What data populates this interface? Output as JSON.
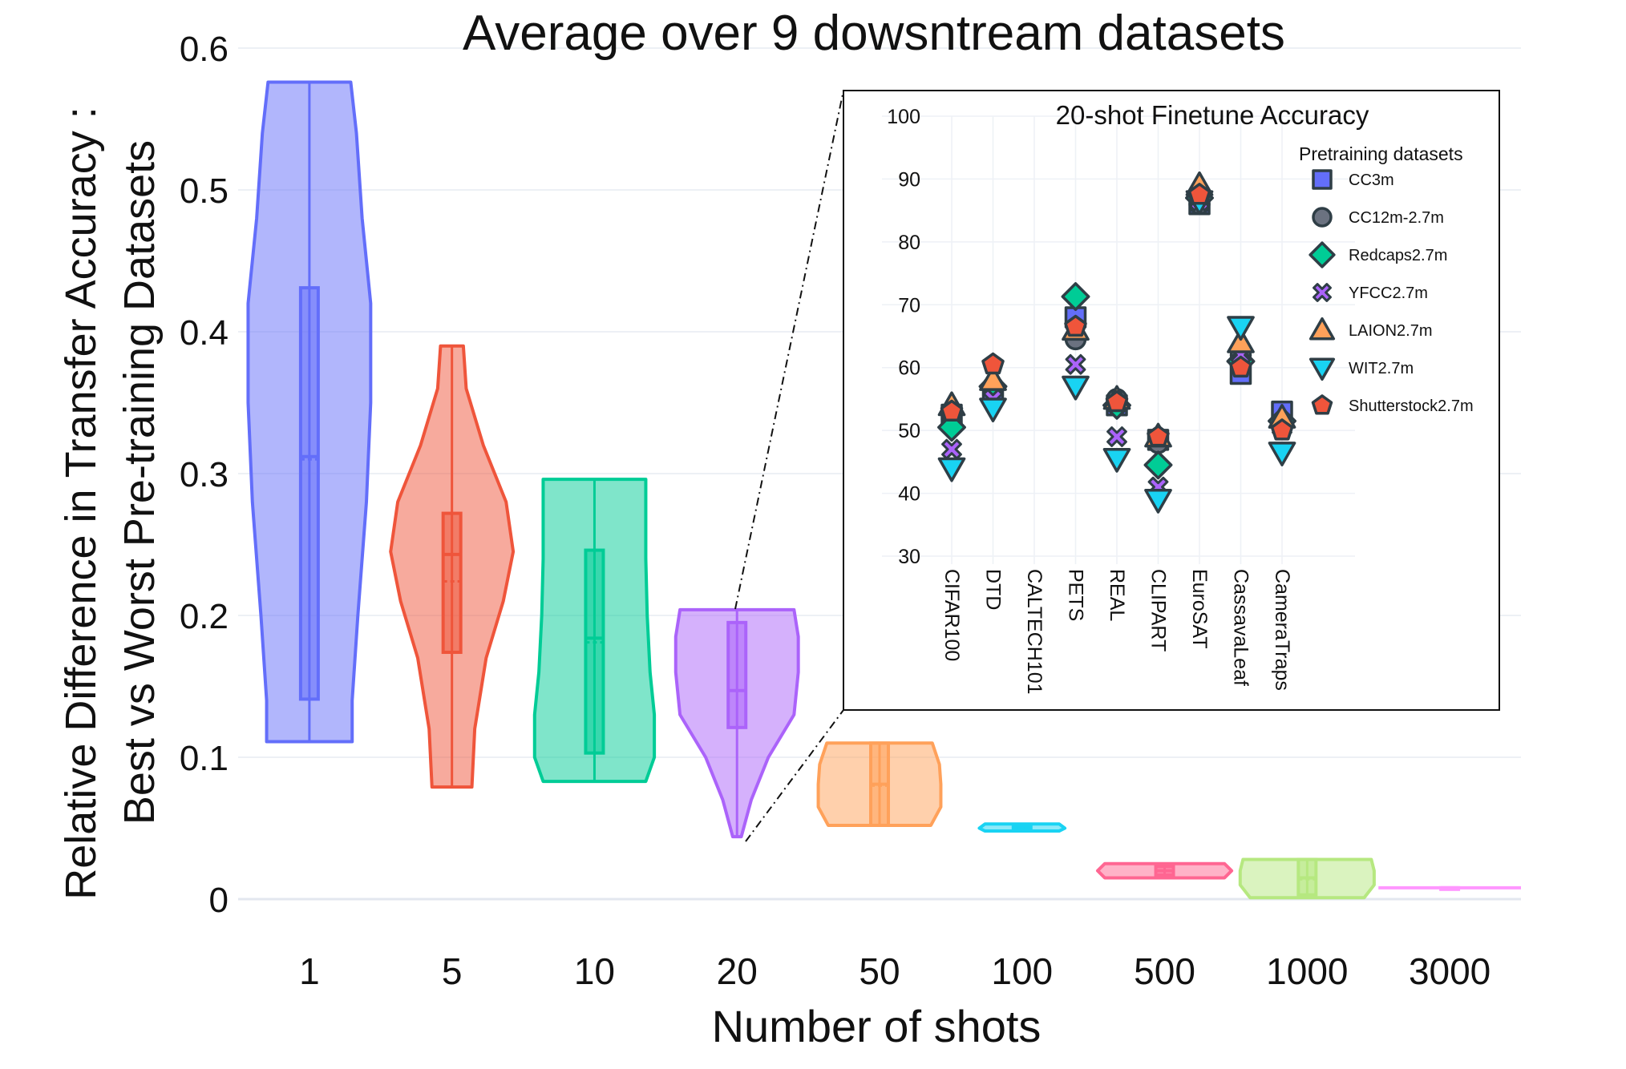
{
  "chart_data": [
    {
      "type": "violin",
      "title": "Average over 9 dowsntream datasets",
      "xlabel": "Number of shots",
      "ylabel_line1": "Relative Difference in Transfer Accuracy :",
      "ylabel_line2": "Best vs Worst Pre-training Datasets",
      "ylim": [
        0,
        0.6
      ],
      "yticks": [
        0,
        0.1,
        0.2,
        0.3,
        0.4,
        0.5,
        0.6
      ],
      "ytick_labels": [
        "0",
        "0.1",
        "0.2",
        "0.3",
        "0.4",
        "0.5",
        "0.6"
      ],
      "categories": [
        "1",
        "5",
        "10",
        "20",
        "50",
        "100",
        "500",
        "1000",
        "3000"
      ],
      "series": [
        {
          "name": "1",
          "color": "#636efa",
          "min": 0.111,
          "q1": 0.141,
          "median": 0.312,
          "mean": 0.31,
          "q3": 0.431,
          "max": 0.576,
          "profile": [
            [
              0.111,
              0.3
            ],
            [
              0.14,
              0.3
            ],
            [
              0.2,
              0.34
            ],
            [
              0.28,
              0.4
            ],
            [
              0.35,
              0.43
            ],
            [
              0.42,
              0.43
            ],
            [
              0.48,
              0.37
            ],
            [
              0.54,
              0.33
            ],
            [
              0.576,
              0.29
            ]
          ]
        },
        {
          "name": "5",
          "color": "#ef553b",
          "min": 0.079,
          "q1": 0.174,
          "median": 0.243,
          "mean": 0.224,
          "q3": 0.272,
          "max": 0.39,
          "profile": [
            [
              0.079,
              0.14
            ],
            [
              0.12,
              0.16
            ],
            [
              0.17,
              0.24
            ],
            [
              0.21,
              0.36
            ],
            [
              0.245,
              0.43
            ],
            [
              0.28,
              0.38
            ],
            [
              0.32,
              0.22
            ],
            [
              0.36,
              0.1
            ],
            [
              0.39,
              0.08
            ]
          ]
        },
        {
          "name": "10",
          "color": "#00cc96",
          "min": 0.083,
          "q1": 0.103,
          "median": 0.184,
          "mean": 0.181,
          "q3": 0.246,
          "max": 0.296,
          "profile": [
            [
              0.083,
              0.36
            ],
            [
              0.1,
              0.42
            ],
            [
              0.13,
              0.42
            ],
            [
              0.16,
              0.39
            ],
            [
              0.2,
              0.37
            ],
            [
              0.24,
              0.36
            ],
            [
              0.27,
              0.36
            ],
            [
              0.296,
              0.36
            ]
          ]
        },
        {
          "name": "20",
          "color": "#ab63fa",
          "min": 0.044,
          "q1": 0.121,
          "median": 0.147,
          "mean": 0.147,
          "q3": 0.195,
          "max": 0.204,
          "profile": [
            [
              0.044,
              0.03
            ],
            [
              0.07,
              0.1
            ],
            [
              0.1,
              0.22
            ],
            [
              0.13,
              0.4
            ],
            [
              0.16,
              0.43
            ],
            [
              0.185,
              0.43
            ],
            [
              0.204,
              0.4
            ]
          ]
        },
        {
          "name": "50",
          "color": "#ffa15a",
          "min": 0.052,
          "q1": 0.052,
          "median": 0.081,
          "mean": 0.08,
          "q3": 0.11,
          "max": 0.11,
          "profile": [
            [
              0.052,
              0.36
            ],
            [
              0.065,
              0.43
            ],
            [
              0.081,
              0.43
            ],
            [
              0.095,
              0.42
            ],
            [
              0.11,
              0.37
            ]
          ]
        },
        {
          "name": "100",
          "color": "#19d3f3",
          "min": 0.048,
          "q1": 0.05,
          "median": 0.05,
          "mean": 0.05,
          "q3": 0.052,
          "max": 0.053,
          "profile": [
            [
              0.048,
              0.26
            ],
            [
              0.05,
              0.3
            ],
            [
              0.053,
              0.26
            ]
          ]
        },
        {
          "name": "500",
          "color": "#ff6692",
          "min": 0.015,
          "q1": 0.017,
          "median": 0.02,
          "mean": 0.02,
          "q3": 0.023,
          "max": 0.025,
          "profile": [
            [
              0.015,
              0.42
            ],
            [
              0.02,
              0.47
            ],
            [
              0.025,
              0.42
            ]
          ]
        },
        {
          "name": "1000",
          "color": "#b6e880",
          "min": 0.001,
          "q1": 0.003,
          "median": 0.015,
          "mean": 0.014,
          "q3": 0.028,
          "max": 0.028,
          "profile": [
            [
              0.001,
              0.4
            ],
            [
              0.01,
              0.47
            ],
            [
              0.02,
              0.47
            ],
            [
              0.028,
              0.45
            ]
          ]
        },
        {
          "name": "3000",
          "color": "#ff97ff",
          "min": 0.008,
          "q1": 0.008,
          "median": 0.008,
          "mean": 0.008,
          "q3": 0.008,
          "max": 0.008,
          "profile": [
            [
              0.008,
              0.5
            ]
          ]
        }
      ]
    },
    {
      "type": "scatter",
      "title": "20-shot Finetune Accuracy",
      "legend_title": "Pretraining datasets",
      "ylim": [
        30,
        100
      ],
      "yticks": [
        30,
        40,
        50,
        60,
        70,
        80,
        90,
        100
      ],
      "categories": [
        "CIFAR100",
        "DTD",
        "CALTECH101",
        "PETS",
        "REAL",
        "CLIPART",
        "EuroSAT",
        "CassavaLeaf",
        "CameraTraps"
      ],
      "series": [
        {
          "name": "CC3m",
          "color": "#636efa",
          "symbol": "square",
          "values": [
            52.5,
            56,
            null,
            68,
            54,
            48.5,
            86,
            59,
            53
          ]
        },
        {
          "name": "CC12m-2.7m",
          "color": "#6b7280",
          "symbol": "circle",
          "values": [
            51,
            57,
            null,
            64.5,
            55,
            48,
            86,
            62,
            51
          ]
        },
        {
          "name": "Redcaps2.7m",
          "color": "#00cc96",
          "symbol": "diamond",
          "values": [
            50.5,
            57,
            null,
            71.3,
            54,
            44.5,
            87,
            61,
            51.5
          ]
        },
        {
          "name": "YFCC2.7m",
          "color": "#ab63fa",
          "symbol": "x",
          "values": [
            47,
            55,
            null,
            60.5,
            49,
            41,
            86.5,
            62,
            50.5
          ]
        },
        {
          "name": "LAION2.7m",
          "color": "#ffa15a",
          "symbol": "triangle-up",
          "values": [
            54,
            58,
            null,
            66,
            55,
            49,
            89,
            64,
            52
          ]
        },
        {
          "name": "WIT2.7m",
          "color": "#19d3f3",
          "symbol": "triangle-down",
          "values": [
            44,
            53.5,
            null,
            57,
            45.5,
            39,
            86.5,
            66.5,
            46.5
          ]
        },
        {
          "name": "Shutterstock2.7m",
          "color": "#ef553b",
          "symbol": "pentagon",
          "values": [
            53,
            60.5,
            null,
            66.5,
            54.5,
            49,
            87.5,
            60,
            50
          ]
        }
      ]
    }
  ]
}
